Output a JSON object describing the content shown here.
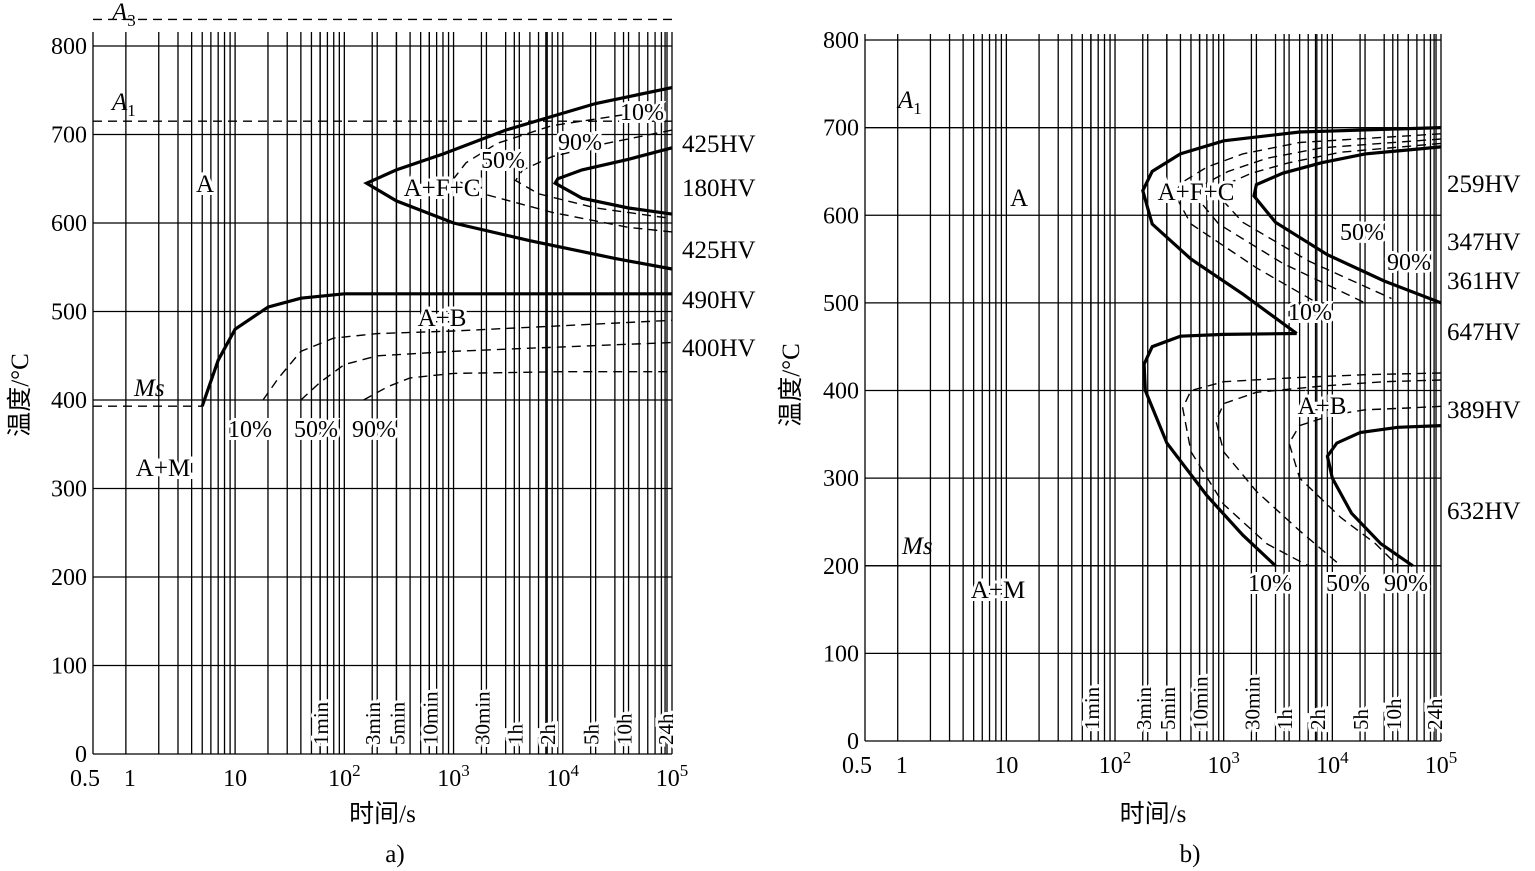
{
  "chart_data": [
    {
      "type": "line",
      "caption": "a)",
      "xlabel": "时间/s",
      "ylabel": "温度/°C",
      "xscale": "log",
      "xlim": [
        0.5,
        100000
      ],
      "ylim": [
        0,
        800
      ],
      "x_tick_labels": [
        "0.5",
        "1",
        "10",
        "10²",
        "10³",
        "10⁴",
        "10⁵"
      ],
      "y_ticks": [
        0,
        100,
        200,
        300,
        400,
        500,
        600,
        700,
        800
      ],
      "time_markers": [
        "1min",
        "3min",
        "5min",
        "10min",
        "30min",
        "1h",
        "2h",
        "5h",
        "10h",
        "24h"
      ],
      "reference_lines": [
        {
          "name": "A3",
          "y": 830
        },
        {
          "name": "A1",
          "y": 715
        },
        {
          "name": "Ms",
          "y": 393
        }
      ],
      "regions": [
        "A",
        "A+F+C",
        "A+B",
        "A+M"
      ],
      "percent_labels": [
        "10%",
        "50%",
        "90%",
        "10%",
        "50%",
        "90%"
      ],
      "hardness": [
        "425HV",
        "180HV",
        "425HV",
        "490HV",
        "400HV"
      ],
      "series": [
        {
          "style": "solid",
          "x": [
            100000,
            20000,
            3000,
            800,
            300,
            160,
            300,
            1000,
            5000,
            30000,
            100000
          ],
          "y": [
            753,
            735,
            705,
            678,
            660,
            645,
            625,
            600,
            580,
            560,
            548
          ]
        },
        {
          "style": "dashed",
          "x": [
            50000,
            8000,
            2500,
            1300,
            1000,
            2000,
            8000,
            40000,
            100000
          ],
          "y": [
            725,
            710,
            690,
            668,
            650,
            632,
            612,
            595,
            590
          ]
        },
        {
          "style": "dashed",
          "x": [
            100000,
            25000,
            8000,
            4300,
            3700,
            6000,
            20000,
            100000
          ],
          "y": [
            705,
            690,
            675,
            660,
            648,
            633,
            617,
            605
          ]
        },
        {
          "style": "solid",
          "x": [
            100000,
            40000,
            15000,
            9000,
            8500,
            15000,
            40000,
            100000
          ],
          "y": [
            685,
            672,
            660,
            650,
            645,
            628,
            617,
            610
          ]
        },
        {
          "style": "solid",
          "x": [
            5,
            7,
            10,
            20,
            40,
            100,
            100000
          ],
          "y": [
            393,
            445,
            480,
            505,
            515,
            520,
            520
          ]
        },
        {
          "style": "dashed",
          "x": [
            18,
            25,
            40,
            80,
            200,
            1000,
            10000,
            100000
          ],
          "y": [
            400,
            425,
            455,
            470,
            475,
            478,
            484,
            490
          ]
        },
        {
          "style": "dashed",
          "x": [
            40,
            60,
            100,
            200,
            1000,
            10000,
            100000
          ],
          "y": [
            400,
            420,
            440,
            450,
            455,
            460,
            465
          ]
        },
        {
          "style": "dashed",
          "x": [
            150,
            250,
            400,
            1000,
            10000,
            100000
          ],
          "y": [
            400,
            415,
            425,
            430,
            432,
            432
          ]
        }
      ]
    },
    {
      "type": "line",
      "caption": "b)",
      "xlabel": "时间/s",
      "ylabel": "温度/°C",
      "xscale": "log",
      "xlim": [
        0.5,
        100000
      ],
      "ylim": [
        0,
        800
      ],
      "x_tick_labels": [
        "0.5",
        "1",
        "10",
        "10²",
        "10³",
        "10⁴",
        "10⁵"
      ],
      "y_ticks": [
        0,
        100,
        200,
        300,
        400,
        500,
        600,
        700,
        800
      ],
      "time_markers": [
        "1min",
        "3min",
        "5min",
        "10min",
        "30min",
        "1h",
        "2h",
        "5h",
        "10h",
        "24h"
      ],
      "reference_lines": [
        {
          "name": "A1",
          "y": 700
        },
        {
          "name": "Ms",
          "y": 200
        }
      ],
      "regions": [
        "A",
        "A+F+C",
        "A+B",
        "A+M"
      ],
      "percent_labels": [
        "50%",
        "90%",
        "10%",
        "10%",
        "50%",
        "90%"
      ],
      "hardness": [
        "259HV",
        "347HV",
        "361HV",
        "647HV",
        "389HV",
        "632HV"
      ],
      "series": [
        {
          "style": "solid",
          "x": [
            100000,
            5000,
            1000,
            400,
            220,
            180,
            220,
            500,
            1500,
            4700
          ],
          "y": [
            700,
            695,
            685,
            670,
            650,
            628,
            590,
            550,
            510,
            465
          ]
        },
        {
          "style": "solid",
          "x": [
            4700,
            1000,
            400,
            220,
            185,
            190,
            300,
            700,
            1500,
            3000
          ],
          "y": [
            465,
            464,
            462,
            450,
            430,
            400,
            340,
            280,
            235,
            200
          ]
        },
        {
          "style": "dashed",
          "x": [
            100000,
            5000,
            1500,
            700,
            420,
            350,
            500,
            2000,
            10000
          ],
          "y": [
            693,
            683,
            670,
            655,
            638,
            625,
            590,
            540,
            490
          ]
        },
        {
          "style": "dashed",
          "x": [
            100000,
            8000,
            2500,
            1100,
            650,
            550,
            900,
            3500,
            20000
          ],
          "y": [
            687,
            677,
            665,
            650,
            635,
            622,
            590,
            545,
            500
          ]
        },
        {
          "style": "dashed",
          "x": [
            100000,
            12000,
            4000,
            1800,
            1000,
            900,
            1500,
            6000,
            35000
          ],
          "y": [
            682,
            672,
            660,
            648,
            634,
            622,
            592,
            548,
            505
          ]
        },
        {
          "style": "solid",
          "x": [
            100000,
            20000,
            8000,
            3500,
            2000,
            1900,
            3000,
            9000,
            30000,
            100000
          ],
          "y": [
            678,
            670,
            660,
            648,
            635,
            622,
            592,
            555,
            525,
            500
          ]
        },
        {
          "style": "dashed",
          "x": [
            100000,
            20000,
            5000,
            1000,
            500,
            420,
            500,
            1000,
            2500,
            6000
          ],
          "y": [
            420,
            418,
            415,
            410,
            400,
            380,
            330,
            270,
            225,
            200
          ]
        },
        {
          "style": "dashed",
          "x": [
            100000,
            30000,
            8000,
            2000,
            1000,
            850,
            1000,
            2000,
            5000,
            12000
          ],
          "y": [
            412,
            410,
            405,
            398,
            385,
            365,
            330,
            285,
            240,
            200
          ]
        },
        {
          "style": "dashed",
          "x": [
            100000,
            50000,
            20000,
            10000,
            5000,
            4000,
            5000,
            12000,
            25000,
            40000
          ],
          "y": [
            382,
            380,
            378,
            372,
            360,
            340,
            300,
            255,
            225,
            200
          ]
        },
        {
          "style": "solid",
          "x": [
            100000,
            40000,
            18000,
            11000,
            9000,
            10000,
            15000,
            28000,
            55000
          ],
          "y": [
            360,
            358,
            352,
            340,
            325,
            300,
            260,
            225,
            200
          ]
        }
      ]
    }
  ]
}
